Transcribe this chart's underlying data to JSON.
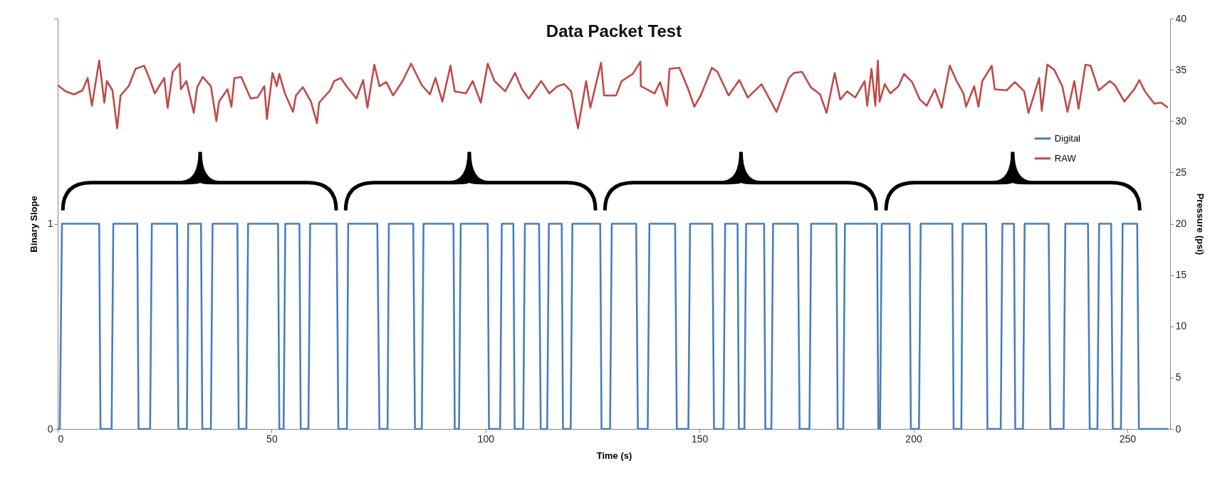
{
  "chart_data": {
    "type": "line",
    "title": "Data Packet Test",
    "xlabel": "Time (s)",
    "ylabel": "Binary Slope",
    "y2label": "Pressure (psi)",
    "xlim": [
      0,
      260
    ],
    "xticks": [
      0,
      50,
      100,
      150,
      200,
      250
    ],
    "ylim": [
      0,
      2
    ],
    "yticks": [
      0,
      1,
      {
        "value": 2,
        "label": null
      }
    ],
    "y2lim": [
      0,
      40
    ],
    "y2ticks": [
      0,
      5,
      10,
      15,
      20,
      25,
      30,
      35,
      40
    ],
    "grid": false,
    "legend": "top right",
    "series": [
      {
        "name": "Digital",
        "color": "#4a7ebb",
        "x": [
          0,
          0.5,
          1.0,
          9.7,
          10.0,
          12.6,
          13.0,
          18.6,
          18.9,
          21.6,
          22.0,
          27.9,
          28.2,
          30.2,
          30.5,
          33.5,
          33.8,
          35.8,
          36.2,
          42.0,
          42.3,
          44.1,
          44.5,
          51.5,
          51.8,
          52.8,
          53.2,
          56.5,
          56.8,
          58.6,
          59.0,
          65.2,
          65.6,
          67.6,
          67.9,
          74.7,
          75.2,
          77.1,
          77.4,
          83.1,
          83.5,
          85.1,
          85.5,
          92.5,
          92.8,
          93.8,
          94.2,
          100.5,
          100.8,
          103.4,
          103.8,
          106.5,
          106.8,
          108.8,
          109.2,
          112.5,
          112.9,
          114.4,
          114.8,
          117.8,
          118.1,
          119.9,
          120.3,
          126.8,
          127.1,
          129.1,
          129.5,
          135.2,
          135.6,
          137.9,
          138.3,
          144.3,
          144.7,
          147.4,
          147.8,
          153.0,
          153.4,
          155.6,
          156.0,
          158.9,
          159.2,
          160.5,
          160.9,
          165.1,
          165.4,
          166.8,
          167.2,
          173.0,
          173.4,
          175.7,
          176.1,
          182.0,
          182.3,
          183.6,
          184.0,
          191.5,
          191.8,
          192.2,
          192.6,
          199.1,
          199.4,
          201.3,
          201.7,
          209.1,
          209.4,
          211.2,
          211.5,
          217.0,
          217.3,
          220.4,
          220.8,
          223.5,
          223.8,
          225.6,
          226.0,
          231.6,
          232.0,
          235.1,
          235.5,
          240.8,
          241.2,
          243.0,
          243.4,
          246.2,
          246.6,
          248.5,
          248.9,
          252.3,
          252.7,
          259.6
        ],
        "values": [
          0,
          0,
          1,
          1,
          0,
          0,
          1,
          1,
          0,
          0,
          1,
          1,
          0,
          0,
          1,
          1,
          0,
          0,
          1,
          1,
          0,
          0,
          1,
          1,
          0,
          0,
          1,
          1,
          0,
          0,
          1,
          1,
          0,
          0,
          1,
          1,
          0,
          0,
          1,
          1,
          0,
          0,
          1,
          1,
          0,
          0,
          1,
          1,
          0,
          0,
          1,
          1,
          0,
          0,
          1,
          1,
          0,
          0,
          1,
          1,
          0,
          0,
          1,
          1,
          0,
          0,
          1,
          1,
          0,
          0,
          1,
          1,
          0,
          0,
          1,
          1,
          0,
          0,
          1,
          1,
          0,
          0,
          1,
          1,
          0,
          0,
          1,
          1,
          0,
          0,
          1,
          1,
          0,
          0,
          1,
          1,
          0,
          0,
          1,
          1,
          0,
          0,
          1,
          1,
          0,
          0,
          1,
          1,
          0,
          0,
          1,
          1,
          0,
          0,
          1,
          1,
          0,
          0,
          1,
          1,
          0,
          0,
          1,
          1,
          0,
          0,
          1,
          1,
          0,
          0
        ]
      },
      {
        "name": "RAW",
        "color": "#be4b48",
        "axis": "y2",
        "x": [
          0,
          1.9,
          3.8,
          5.8,
          7.0,
          8.0,
          9.7,
          10.9,
          11.5,
          12.8,
          13.9,
          14.7,
          16.6,
          18.2,
          20.2,
          21.4,
          22.7,
          24.9,
          25.7,
          26.9,
          28.5,
          28.8,
          30.1,
          31.8,
          32.6,
          33.9,
          35.8,
          37.1,
          37.7,
          39.7,
          40.6,
          41.3,
          42.9,
          45.1,
          46.7,
          48.3,
          48.9,
          50.2,
          51.2,
          51.8,
          53.1,
          55.0,
          55.7,
          57.3,
          59.2,
          60.6,
          61.1,
          63.7,
          64.6,
          66.2,
          67.5,
          69.8,
          71.4,
          72.4,
          74.0,
          75.2,
          76.8,
          78.4,
          80.6,
          82.6,
          85.1,
          87.0,
          88.3,
          89.9,
          91.8,
          92.8,
          95.4,
          97.0,
          98.9,
          100.5,
          102.1,
          104.6,
          106.9,
          108.5,
          110.1,
          113.0,
          114.9,
          116.8,
          118.4,
          120.0,
          121.6,
          123.5,
          124.5,
          127.0,
          127.7,
          130.5,
          131.8,
          134.4,
          136.2,
          136.3,
          139.5,
          140.8,
          142.4,
          143.0,
          145.3,
          147.2,
          148.8,
          150.4,
          152.9,
          154.2,
          156.8,
          159.3,
          161.3,
          164.5,
          168.0,
          170.9,
          172.1,
          174.0,
          176.0,
          178.2,
          179.7,
          181.6,
          182.9,
          184.5,
          186.4,
          188.6,
          189.2,
          190.2,
          191.1,
          191.7,
          192.1,
          193.3,
          194.6,
          196.5,
          197.8,
          199.7,
          201.5,
          203.1,
          205.0,
          206.6,
          208.5,
          210.1,
          211.7,
          212.3,
          214.2,
          215.2,
          216.1,
          218.3,
          219.0,
          221.8,
          223.7,
          225.9,
          226.9,
          229.4,
          230.0,
          231.3,
          232.9,
          234.8,
          236.0,
          237.6,
          238.6,
          240.2,
          241.4,
          243.3,
          245.9,
          247.1,
          249.3,
          251.6,
          252.8,
          254.1,
          256.3,
          257.9,
          259.5
        ],
        "values": [
          33.5,
          32.9,
          32.6,
          33.0,
          34.2,
          31.5,
          35.9,
          31.8,
          33.9,
          33.0,
          29.3,
          32.5,
          33.4,
          35.1,
          35.4,
          34.2,
          32.7,
          34.2,
          31.3,
          34.8,
          35.6,
          33.1,
          33.9,
          30.8,
          33.3,
          34.3,
          33.4,
          30.0,
          31.9,
          33.1,
          31.4,
          34.2,
          34.3,
          32.2,
          32.3,
          33.4,
          30.2,
          34.7,
          33.4,
          34.6,
          32.7,
          30.9,
          32.5,
          33.3,
          31.9,
          29.8,
          31.8,
          33.0,
          33.9,
          34.2,
          33.4,
          32.2,
          34.0,
          31.3,
          35.5,
          33.4,
          33.8,
          32.5,
          33.9,
          35.6,
          33.5,
          32.6,
          34.2,
          31.9,
          35.4,
          32.9,
          32.7,
          33.9,
          31.8,
          35.6,
          33.9,
          32.9,
          34.7,
          33.1,
          32.2,
          33.9,
          32.7,
          33.4,
          33.6,
          32.9,
          29.3,
          33.9,
          31.3,
          35.7,
          32.5,
          32.5,
          33.9,
          34.6,
          35.8,
          33.4,
          32.7,
          33.8,
          31.5,
          35.1,
          35.2,
          33.3,
          31.4,
          32.6,
          35.2,
          34.8,
          32.5,
          34.0,
          32.3,
          33.6,
          30.9,
          34.2,
          34.7,
          34.8,
          33.3,
          32.6,
          30.8,
          34.7,
          32.1,
          32.9,
          32.3,
          33.9,
          31.5,
          35.1,
          31.5,
          35.9,
          31.9,
          33.6,
          32.7,
          33.4,
          34.6,
          33.8,
          32.1,
          31.5,
          33.1,
          31.3,
          35.4,
          33.9,
          32.7,
          31.4,
          33.4,
          31.4,
          33.9,
          35.4,
          33.1,
          33.0,
          33.8,
          32.9,
          30.8,
          34.2,
          31.0,
          35.5,
          35.0,
          33.4,
          30.9,
          33.9,
          31.2,
          35.5,
          35.4,
          33.0,
          33.9,
          33.5,
          31.9,
          33.1,
          34.0,
          32.9,
          31.7,
          31.8,
          31.3
        ]
      }
    ]
  }
}
